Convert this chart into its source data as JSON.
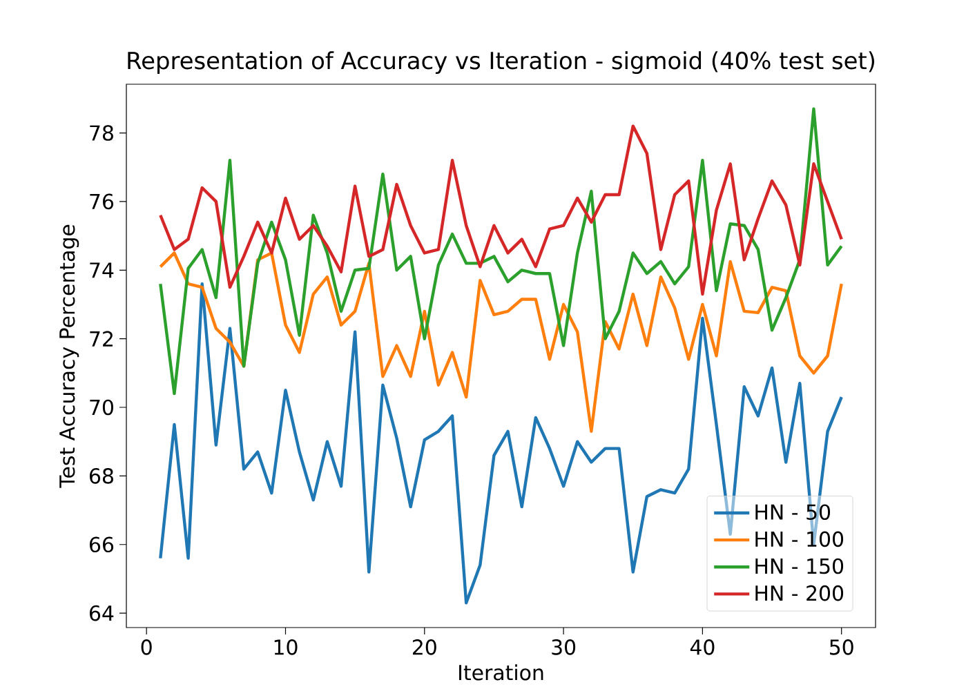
{
  "chart_data": {
    "type": "line",
    "title": "Representation of Accuracy vs Iteration - sigmoid (40% test set)",
    "xlabel": "Iteration",
    "ylabel": "Test Accuracy Percentage",
    "x": [
      1,
      2,
      3,
      4,
      5,
      6,
      7,
      8,
      9,
      10,
      11,
      12,
      13,
      14,
      15,
      16,
      17,
      18,
      19,
      20,
      21,
      22,
      23,
      24,
      25,
      26,
      27,
      28,
      29,
      30,
      31,
      32,
      33,
      34,
      35,
      36,
      37,
      38,
      39,
      40,
      41,
      42,
      43,
      44,
      45,
      46,
      47,
      48,
      49,
      50
    ],
    "series": [
      {
        "name": "HN - 50",
        "color": "#1f77b4",
        "values": [
          65.6,
          69.5,
          65.6,
          73.6,
          68.9,
          72.3,
          68.2,
          68.7,
          67.5,
          70.5,
          68.7,
          67.3,
          69.0,
          67.7,
          72.2,
          65.2,
          70.65,
          69.1,
          67.1,
          69.05,
          69.3,
          69.75,
          64.3,
          65.4,
          68.6,
          69.3,
          67.1,
          69.7,
          68.8,
          67.7,
          69.0,
          68.4,
          68.8,
          68.8,
          65.2,
          67.4,
          67.6,
          67.5,
          68.2,
          72.6,
          69.5,
          66.3,
          70.6,
          69.75,
          71.15,
          68.4,
          70.7,
          66.0,
          69.3,
          70.3
        ]
      },
      {
        "name": "HN - 100",
        "color": "#ff7f0e",
        "values": [
          74.1,
          74.5,
          73.6,
          73.5,
          72.3,
          71.9,
          71.2,
          74.3,
          74.5,
          72.4,
          71.6,
          73.3,
          73.8,
          72.4,
          72.8,
          74.2,
          70.9,
          71.8,
          70.9,
          72.8,
          70.65,
          71.6,
          70.3,
          73.7,
          72.7,
          72.8,
          73.15,
          73.15,
          71.4,
          73.0,
          72.2,
          69.3,
          72.5,
          71.7,
          73.3,
          71.8,
          73.8,
          72.9,
          71.4,
          73.0,
          71.5,
          74.25,
          72.8,
          72.76,
          73.5,
          73.4,
          71.5,
          71.0,
          71.5,
          73.6
        ]
      },
      {
        "name": "HN - 150",
        "color": "#2ca02c",
        "values": [
          73.6,
          70.4,
          74.05,
          74.6,
          73.2,
          77.2,
          71.2,
          74.2,
          75.4,
          74.3,
          72.1,
          75.6,
          74.5,
          72.8,
          74.0,
          74.05,
          76.8,
          74.0,
          74.4,
          72.0,
          74.15,
          75.05,
          74.2,
          74.2,
          74.4,
          73.66,
          74.0,
          73.9,
          73.9,
          71.8,
          74.5,
          76.3,
          72.0,
          72.8,
          74.5,
          73.9,
          74.25,
          73.6,
          74.1,
          77.2,
          73.4,
          75.35,
          75.3,
          74.6,
          72.25,
          73.2,
          74.3,
          78.7,
          74.15,
          74.7
        ]
      },
      {
        "name": "HN - 200",
        "color": "#d62728",
        "values": [
          75.6,
          74.6,
          74.9,
          76.4,
          76.0,
          73.5,
          74.4,
          75.4,
          74.5,
          76.1,
          74.9,
          75.3,
          74.7,
          73.95,
          76.45,
          74.4,
          74.6,
          76.5,
          75.3,
          74.5,
          74.6,
          77.2,
          75.3,
          74.1,
          75.3,
          74.5,
          74.9,
          74.1,
          75.2,
          75.3,
          76.1,
          75.4,
          76.2,
          76.2,
          78.2,
          77.4,
          74.6,
          76.2,
          76.6,
          73.3,
          75.75,
          77.1,
          74.3,
          75.5,
          76.6,
          75.9,
          74.15,
          77.1,
          76.0,
          74.9
        ]
      }
    ],
    "xlim": [
      -1.45,
      52.45
    ],
    "ylim": [
      63.58,
      79.42
    ],
    "xticks": [
      0,
      10,
      20,
      30,
      40,
      50
    ],
    "yticks": [
      64,
      66,
      68,
      70,
      72,
      74,
      76,
      78
    ],
    "grid": false,
    "legend": "bottom right",
    "marker": "none",
    "line_style": "solid"
  }
}
